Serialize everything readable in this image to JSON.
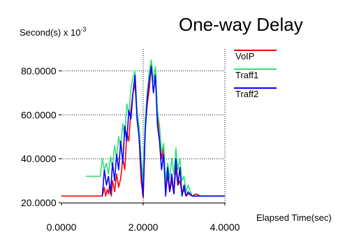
{
  "chart_data": {
    "type": "line",
    "title": "One-way Delay",
    "ylabel_unit": "Second(s) x 10",
    "ylabel_exponent": "-3",
    "xlabel": "Elapsed Time(sec)",
    "xlim": [
      0,
      4
    ],
    "ylim": [
      20,
      90
    ],
    "xticks": [
      "0.0000",
      "2.0000",
      "4.0000"
    ],
    "yticks": [
      "20.0000",
      "40.0000",
      "60.0000",
      "80.0000"
    ],
    "xtick_values": [
      0,
      2,
      4
    ],
    "ytick_values": [
      20,
      40,
      60,
      80
    ],
    "grid": "dotted",
    "legend_position": "right",
    "series": [
      {
        "name": "VoIP",
        "color": "#ff0000",
        "x": [
          0.0,
          0.6,
          1.0,
          1.05,
          1.08,
          1.12,
          1.15,
          1.18,
          1.22,
          1.25,
          1.3,
          1.35,
          1.4,
          1.45,
          1.5,
          1.55,
          1.6,
          1.65,
          1.7,
          1.75,
          1.8,
          1.85,
          1.9,
          1.95,
          2.0,
          2.05,
          2.1,
          2.15,
          2.2,
          2.25,
          2.3,
          2.35,
          2.4,
          2.45,
          2.5,
          2.55,
          2.6,
          2.65,
          2.7,
          2.75,
          2.8,
          2.85,
          2.9,
          2.95,
          3.0,
          3.05,
          3.1,
          3.2,
          3.3,
          3.4,
          4.0
        ],
        "values": [
          23,
          23,
          23,
          27,
          23,
          26,
          24,
          28,
          23,
          30,
          25,
          33,
          27,
          31,
          40,
          35,
          52,
          48,
          62,
          70,
          74,
          60,
          50,
          30,
          22,
          55,
          65,
          72,
          83,
          76,
          80,
          60,
          52,
          40,
          45,
          26,
          32,
          25,
          30,
          24,
          36,
          28,
          30,
          24,
          26,
          23,
          24,
          23,
          24,
          23,
          23
        ]
      },
      {
        "name": "Traff1",
        "color": "#33e07a",
        "x": [
          0.6,
          0.95,
          1.0,
          1.05,
          1.1,
          1.15,
          1.2,
          1.25,
          1.3,
          1.35,
          1.4,
          1.45,
          1.5,
          1.55,
          1.6,
          1.65,
          1.7,
          1.75,
          1.8,
          1.85,
          1.9,
          1.95,
          2.0,
          2.05,
          2.1,
          2.15,
          2.2,
          2.25,
          2.3,
          2.35,
          2.4,
          2.45,
          2.5,
          2.55,
          2.6,
          2.65,
          2.7,
          2.75,
          2.8,
          2.85,
          2.9,
          2.95,
          3.0,
          3.05,
          3.1,
          3.2,
          4.0
        ],
        "values": [
          32,
          32,
          40,
          35,
          38,
          33,
          41,
          36,
          46,
          40,
          50,
          45,
          56,
          50,
          65,
          60,
          72,
          77,
          80,
          62,
          55,
          40,
          30,
          58,
          70,
          80,
          85,
          75,
          82,
          62,
          55,
          43,
          47,
          30,
          38,
          31,
          40,
          33,
          45,
          35,
          40,
          30,
          32,
          25,
          28,
          23,
          23
        ]
      },
      {
        "name": "Traff2",
        "color": "#0000ff",
        "x": [
          1.0,
          1.05,
          1.1,
          1.15,
          1.2,
          1.25,
          1.3,
          1.35,
          1.4,
          1.45,
          1.5,
          1.55,
          1.6,
          1.65,
          1.7,
          1.75,
          1.8,
          1.85,
          1.9,
          1.95,
          2.0,
          2.05,
          2.1,
          2.15,
          2.2,
          2.25,
          2.3,
          2.35,
          2.4,
          2.45,
          2.5,
          2.55,
          2.6,
          2.65,
          2.7,
          2.75,
          2.8,
          2.85,
          2.9,
          2.95,
          3.0,
          3.05,
          3.1,
          3.2,
          4.0
        ],
        "values": [
          23,
          35,
          28,
          32,
          24,
          38,
          30,
          42,
          35,
          48,
          38,
          55,
          48,
          62,
          58,
          70,
          78,
          58,
          50,
          35,
          23,
          52,
          68,
          76,
          82,
          70,
          78,
          55,
          48,
          35,
          42,
          23,
          36,
          25,
          33,
          24,
          40,
          28,
          36,
          23,
          28,
          23,
          25,
          23,
          23
        ]
      }
    ]
  }
}
